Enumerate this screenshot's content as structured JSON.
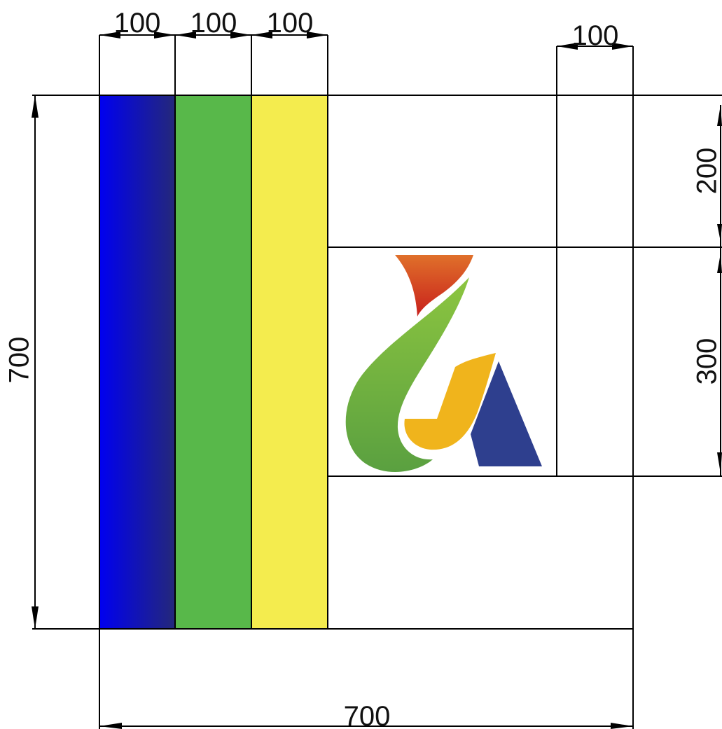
{
  "colors": {
    "stripe_blue_start": "#0000f0",
    "stripe_blue_end": "#24287a",
    "stripe_green": "#58b84a",
    "stripe_yellow": "#f4ec4e",
    "logo_red_top": "#e0702a",
    "logo_red_bottom": "#c8201c",
    "logo_green_light": "#8cc540",
    "logo_green_dark": "#5aa040",
    "logo_orange": "#f0b41c",
    "logo_navy": "#2e3f8e",
    "line": "#000000"
  },
  "dimensions": {
    "top_stripe_1": "100",
    "top_stripe_2": "100",
    "top_stripe_3": "100",
    "top_right_column": "100",
    "right_upper": "200",
    "right_middle": "300",
    "left_height": "700",
    "bottom_width": "700"
  },
  "logo": {
    "icon": "stylized-letter-logo"
  }
}
